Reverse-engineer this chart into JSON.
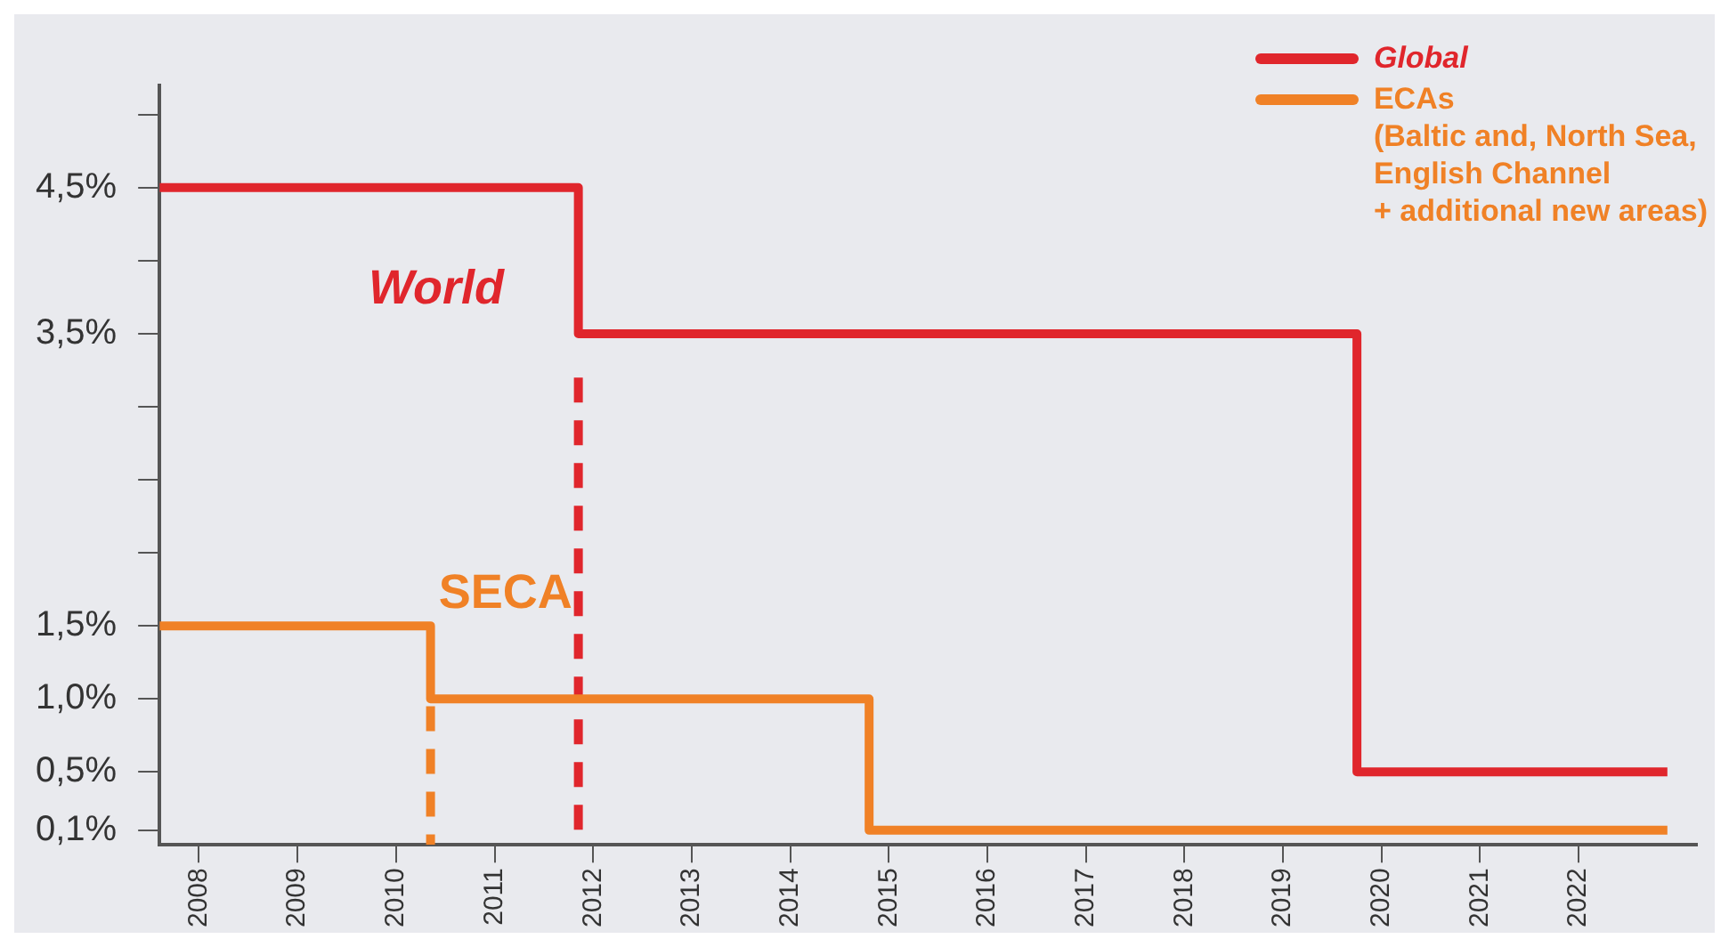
{
  "chart_data": {
    "type": "step",
    "xlim": [
      2007.6,
      2023.2
    ],
    "ylim": [
      0,
      5.2
    ],
    "xticks": [
      2008,
      2009,
      2010,
      2011,
      2012,
      2013,
      2014,
      2015,
      2016,
      2017,
      2018,
      2019,
      2020,
      2021,
      2022
    ],
    "yticks": [
      {
        "value": 0.1,
        "label": "0,1%"
      },
      {
        "value": 0.5,
        "label": "0,5%"
      },
      {
        "value": 1.0,
        "label": "1,0%"
      },
      {
        "value": 1.5,
        "label": "1,5%"
      },
      {
        "value": 2.0,
        "label": null
      },
      {
        "value": 2.5,
        "label": null
      },
      {
        "value": 3.0,
        "label": null
      },
      {
        "value": 3.5,
        "label": "3,5%"
      },
      {
        "value": 4.0,
        "label": null
      },
      {
        "value": 4.5,
        "label": "4,5%"
      },
      {
        "value": 5.0,
        "label": null
      }
    ],
    "series": [
      {
        "name": "Global",
        "color": "#e0262c",
        "x": [
          2007.6,
          2011.85,
          2019.75,
          2022.9
        ],
        "values": [
          4.5,
          3.5,
          0.5,
          0.5
        ]
      },
      {
        "name": "ECAs\n(Baltic and, North Sea,\nEnglish Channel\n+ additional new areas)",
        "color": "#f08126",
        "x": [
          2007.6,
          2010.35,
          2014.8,
          2022.9
        ],
        "values": [
          1.5,
          1.0,
          0.1,
          0.1
        ]
      },
      {
        "type": "line",
        "line_style": "dashed",
        "color": "#e0262c",
        "x": [
          2011.85,
          2011.85
        ],
        "values": [
          3.2,
          0
        ]
      },
      {
        "type": "line",
        "line_style": "dashed",
        "color": "#f08126",
        "x": [
          2010.35,
          2010.35
        ],
        "values": [
          0.95,
          0
        ]
      }
    ],
    "annotations": [
      "World",
      "SECA"
    ],
    "legend": "top right",
    "grid": false
  }
}
